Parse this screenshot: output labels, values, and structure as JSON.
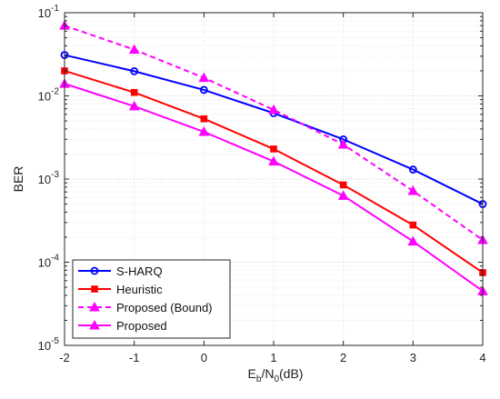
{
  "chart_data": {
    "type": "line",
    "xlabel": {
      "main": "E",
      "sub1": "b",
      "mid": "/N",
      "sub2": "0",
      "tail": "(dB)"
    },
    "ylabel": "BER",
    "x": [
      -2,
      -1,
      0,
      1,
      2,
      3,
      4
    ],
    "xlim": [
      -2,
      4
    ],
    "ylim": [
      1e-05,
      0.1
    ],
    "yscale": "log",
    "x_ticks": [
      "-2",
      "-1",
      "0",
      "1",
      "2",
      "3",
      "4"
    ],
    "y_ticks": [
      {
        "base": "10",
        "exp": "-5"
      },
      {
        "base": "10",
        "exp": "-4"
      },
      {
        "base": "10",
        "exp": "-3"
      },
      {
        "base": "10",
        "exp": "-2"
      },
      {
        "base": "10",
        "exp": "-1"
      }
    ],
    "grid": true,
    "legend_position": "bottom-left",
    "series": [
      {
        "name": "S-HARQ",
        "color": "#0000ff",
        "marker": "circle",
        "dash": "solid",
        "values": [
          0.031,
          0.0198,
          0.0118,
          0.0062,
          0.003,
          0.0013,
          0.0005
        ]
      },
      {
        "name": "Heuristic",
        "color": "#ff0000",
        "marker": "square",
        "dash": "solid",
        "values": [
          0.02,
          0.011,
          0.0053,
          0.0023,
          0.00085,
          0.00028,
          7.5e-05
        ]
      },
      {
        "name": "Proposed (Bound)",
        "color": "#ff00ff",
        "marker": "triangle",
        "dash": "dashed",
        "values": [
          0.07,
          0.036,
          0.0165,
          0.0068,
          0.0026,
          0.00072,
          0.000185
        ]
      },
      {
        "name": "Proposed",
        "color": "#ff00ff",
        "marker": "triangle",
        "dash": "solid",
        "values": [
          0.014,
          0.0075,
          0.0037,
          0.00163,
          0.00063,
          0.000178,
          4.5e-05
        ]
      }
    ]
  }
}
